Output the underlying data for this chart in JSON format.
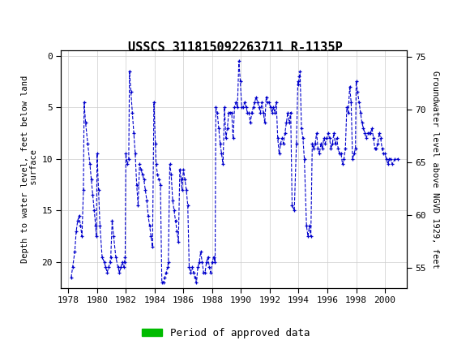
{
  "title": "USSCS 311815092263711 R-1135P",
  "ylabel_left": "Depth to water level, feet below land\n surface",
  "ylabel_right": "Groundwater level above NGVD 1929, feet",
  "ylim_left": [
    22.5,
    -0.5
  ],
  "ylim_right": [
    53.125,
    75.625
  ],
  "xlim": [
    1977.5,
    2001.5
  ],
  "xticks": [
    1978,
    1980,
    1982,
    1984,
    1986,
    1988,
    1990,
    1992,
    1994,
    1996,
    1998,
    2000
  ],
  "yticks_left": [
    0,
    5,
    10,
    15,
    20
  ],
  "yticks_right": [
    75,
    70,
    65,
    60,
    55
  ],
  "line_color": "#0000CC",
  "marker": "+",
  "linestyle": "--",
  "legend_label": "Period of approved data",
  "legend_color": "#00BB00",
  "header_bg": "#1a7040",
  "background_color": "#ffffff",
  "grid_color": "#cccccc",
  "data_x": [
    1978.2,
    1978.3,
    1978.45,
    1978.55,
    1978.65,
    1978.75,
    1978.85,
    1978.95,
    1979.05,
    1979.1,
    1979.2,
    1979.35,
    1979.5,
    1979.6,
    1979.7,
    1979.8,
    1979.9,
    1979.95,
    1980.0,
    1980.1,
    1980.2,
    1980.35,
    1980.5,
    1980.6,
    1980.7,
    1980.8,
    1980.9,
    1980.95,
    1981.05,
    1981.15,
    1981.3,
    1981.45,
    1981.55,
    1981.65,
    1981.75,
    1981.85,
    1981.9,
    1981.95,
    1982.0,
    1982.1,
    1982.2,
    1982.25,
    1982.35,
    1982.45,
    1982.55,
    1982.65,
    1982.75,
    1982.85,
    1982.95,
    1983.05,
    1983.15,
    1983.25,
    1983.35,
    1983.45,
    1983.55,
    1983.65,
    1983.75,
    1983.85,
    1983.95,
    1984.05,
    1984.1,
    1984.2,
    1984.3,
    1984.4,
    1984.5,
    1984.6,
    1984.7,
    1984.8,
    1984.9,
    1984.95,
    1985.05,
    1985.15,
    1985.25,
    1985.35,
    1985.45,
    1985.55,
    1985.65,
    1985.75,
    1985.85,
    1985.9,
    1986.0,
    1986.1,
    1986.2,
    1986.3,
    1986.4,
    1986.5,
    1986.6,
    1986.7,
    1986.8,
    1986.9,
    1987.0,
    1987.1,
    1987.2,
    1987.3,
    1987.4,
    1987.5,
    1987.6,
    1987.7,
    1987.8,
    1987.9,
    1988.0,
    1988.1,
    1988.2,
    1988.25,
    1988.35,
    1988.45,
    1988.55,
    1988.65,
    1988.75,
    1988.85,
    1988.95,
    1989.05,
    1989.15,
    1989.25,
    1989.35,
    1989.45,
    1989.55,
    1989.65,
    1989.75,
    1989.85,
    1989.95,
    1990.05,
    1990.15,
    1990.25,
    1990.35,
    1990.45,
    1990.55,
    1990.65,
    1990.75,
    1990.85,
    1990.95,
    1991.05,
    1991.15,
    1991.25,
    1991.35,
    1991.45,
    1991.55,
    1991.65,
    1991.75,
    1991.85,
    1991.95,
    1992.05,
    1992.15,
    1992.25,
    1992.35,
    1992.45,
    1992.55,
    1992.65,
    1992.75,
    1992.85,
    1992.95,
    1993.05,
    1993.15,
    1993.25,
    1993.35,
    1993.45,
    1993.55,
    1993.7,
    1993.85,
    1993.95,
    1994.0,
    1994.05,
    1994.1,
    1994.2,
    1994.3,
    1994.4,
    1994.55,
    1994.65,
    1994.75,
    1994.85,
    1994.95,
    1995.05,
    1995.15,
    1995.25,
    1995.35,
    1995.45,
    1995.55,
    1995.65,
    1995.75,
    1995.85,
    1995.95,
    1996.05,
    1996.15,
    1996.25,
    1996.35,
    1996.45,
    1996.55,
    1996.65,
    1996.75,
    1996.85,
    1996.95,
    1997.05,
    1997.15,
    1997.25,
    1997.35,
    1997.45,
    1997.55,
    1997.65,
    1997.75,
    1997.85,
    1997.95,
    1998.0,
    1998.1,
    1998.2,
    1998.3,
    1998.4,
    1998.5,
    1998.6,
    1998.7,
    1998.8,
    1998.9,
    1999.0,
    1999.1,
    1999.2,
    1999.3,
    1999.4,
    1999.5,
    1999.6,
    1999.7,
    1999.8,
    1999.9,
    2000.0,
    2000.1,
    2000.2,
    2000.3,
    2000.4,
    2000.5,
    2000.7,
    2000.9
  ],
  "data_y": [
    21.5,
    20.5,
    19.0,
    17.0,
    16.0,
    15.5,
    16.5,
    17.5,
    13.0,
    4.5,
    6.5,
    8.5,
    10.5,
    12.0,
    13.5,
    15.0,
    16.5,
    17.5,
    9.5,
    13.0,
    16.5,
    19.5,
    20.0,
    20.5,
    21.0,
    20.5,
    20.0,
    19.5,
    16.0,
    17.5,
    19.5,
    20.5,
    21.0,
    20.5,
    20.0,
    20.5,
    20.0,
    19.5,
    9.5,
    10.5,
    10.0,
    1.5,
    3.5,
    5.5,
    7.5,
    9.5,
    12.5,
    14.5,
    10.5,
    11.0,
    11.5,
    12.0,
    13.0,
    14.0,
    15.5,
    16.5,
    17.5,
    18.5,
    4.5,
    8.5,
    10.5,
    11.5,
    12.0,
    12.5,
    22.0,
    22.0,
    21.5,
    21.0,
    20.5,
    20.0,
    10.5,
    11.5,
    14.0,
    15.0,
    16.0,
    17.0,
    18.0,
    11.0,
    12.0,
    13.0,
    11.0,
    12.0,
    13.0,
    14.5,
    20.5,
    21.0,
    20.5,
    21.0,
    21.5,
    22.0,
    20.5,
    20.0,
    19.0,
    20.0,
    21.0,
    21.0,
    20.0,
    19.5,
    20.5,
    21.0,
    20.0,
    19.5,
    20.0,
    5.0,
    5.5,
    7.0,
    8.5,
    9.5,
    10.5,
    5.0,
    8.0,
    7.0,
    5.5,
    5.5,
    5.5,
    8.0,
    5.0,
    4.5,
    5.0,
    0.5,
    2.5,
    5.0,
    5.0,
    4.5,
    5.0,
    5.5,
    5.5,
    6.5,
    5.5,
    5.0,
    4.5,
    4.0,
    4.5,
    5.0,
    5.5,
    4.5,
    5.5,
    6.5,
    4.0,
    4.5,
    4.5,
    5.0,
    5.5,
    5.0,
    5.5,
    4.5,
    8.0,
    9.5,
    8.5,
    8.0,
    8.5,
    7.5,
    6.5,
    5.5,
    6.5,
    5.5,
    14.5,
    15.0,
    8.5,
    2.5,
    2.8,
    2.0,
    1.5,
    7.0,
    8.0,
    10.0,
    16.5,
    17.5,
    16.5,
    17.5,
    8.5,
    9.0,
    8.5,
    7.5,
    9.0,
    9.5,
    8.5,
    9.0,
    8.0,
    8.5,
    8.0,
    7.5,
    8.0,
    9.0,
    8.5,
    7.5,
    8.5,
    8.0,
    9.0,
    9.5,
    9.5,
    10.5,
    10.0,
    9.0,
    5.0,
    5.5,
    3.0,
    4.5,
    10.0,
    9.5,
    9.0,
    2.5,
    3.5,
    4.5,
    5.5,
    6.5,
    7.0,
    7.5,
    8.0,
    7.5,
    7.5,
    7.5,
    7.0,
    8.0,
    9.0,
    9.0,
    8.5,
    7.5,
    8.0,
    9.0,
    9.5,
    9.5,
    10.0,
    10.5,
    10.0,
    10.0,
    10.5,
    10.0,
    10.0
  ]
}
